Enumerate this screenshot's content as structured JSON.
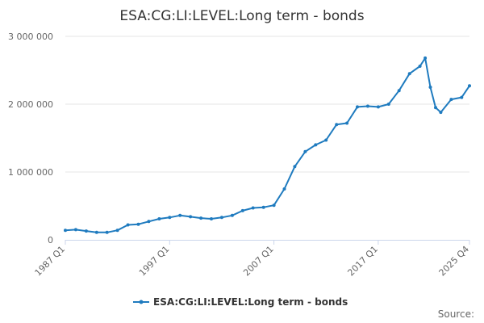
{
  "chart_data": {
    "type": "line",
    "title": "ESA:CG:LI:LEVEL:Long term - bonds",
    "xlabel": "",
    "ylabel": "",
    "ylim": [
      0,
      3000000
    ],
    "y_ticks": [
      0,
      1000000,
      2000000,
      3000000
    ],
    "y_tick_labels": [
      "0",
      "1 000 000",
      "2 000 000",
      "3 000 000"
    ],
    "x_tick_labels": [
      "1987 Q1",
      "1997 Q1",
      "2007 Q1",
      "2017 Q1",
      "2025 Q4"
    ],
    "grid": true,
    "legend_position": "bottom",
    "source_label": "Source:",
    "colors": {
      "series": "#1f7bbf"
    },
    "series": [
      {
        "name": "ESA:CG:LI:LEVEL:Long term - bonds",
        "x": [
          "1987 Q1",
          "1988 Q1",
          "1989 Q1",
          "1990 Q1",
          "1991 Q1",
          "1992 Q1",
          "1993 Q1",
          "1994 Q1",
          "1995 Q1",
          "1996 Q1",
          "1997 Q1",
          "1998 Q1",
          "1999 Q1",
          "2000 Q1",
          "2001 Q1",
          "2002 Q1",
          "2003 Q1",
          "2004 Q1",
          "2005 Q1",
          "2006 Q1",
          "2007 Q1",
          "2008 Q1",
          "2009 Q1",
          "2010 Q1",
          "2011 Q1",
          "2012 Q1",
          "2013 Q1",
          "2014 Q1",
          "2015 Q1",
          "2016 Q1",
          "2017 Q1",
          "2018 Q1",
          "2019 Q1",
          "2020 Q1",
          "2021 Q1",
          "2021 Q3",
          "2022 Q1",
          "2022 Q3",
          "2023 Q1",
          "2024 Q1",
          "2025 Q1",
          "2025 Q4"
        ],
        "values": [
          140000,
          150000,
          130000,
          110000,
          110000,
          140000,
          220000,
          230000,
          270000,
          310000,
          330000,
          360000,
          340000,
          320000,
          310000,
          330000,
          360000,
          430000,
          470000,
          480000,
          510000,
          750000,
          1080000,
          1300000,
          1400000,
          1470000,
          1700000,
          1720000,
          1960000,
          1970000,
          1960000,
          2000000,
          2200000,
          2450000,
          2560000,
          2680000,
          2250000,
          1950000,
          1880000,
          2070000,
          2100000,
          2270000
        ]
      }
    ]
  }
}
